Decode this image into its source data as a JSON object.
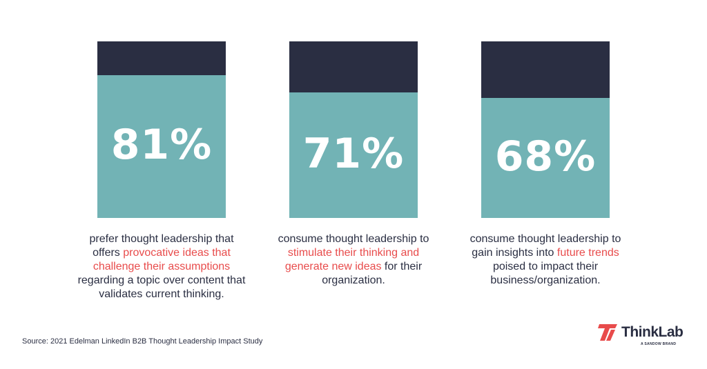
{
  "chart_data": {
    "type": "bar",
    "title": "",
    "categories": [
      "prefer provocative ideas",
      "stimulate thinking",
      "future trends"
    ],
    "values": [
      81,
      71,
      68
    ],
    "value_labels": [
      "81%",
      "71%",
      "68%"
    ],
    "ylim": [
      0,
      100
    ],
    "unit": "%"
  },
  "captions": [
    {
      "before": "prefer thought leadership that offers ",
      "highlight": "provocative ideas that challenge their assumptions",
      "after": " regarding a topic over content that validates current thinking."
    },
    {
      "before": "consume thought leadership to ",
      "highlight": "stimulate their thinking and generate new ideas",
      "after": " for their organization."
    },
    {
      "before": "consume thought leadership to gain insights into ",
      "highlight": "future trends",
      "after": " poised to impact their business/organization."
    }
  ],
  "source": "Source: 2021 Edelman LinkedIn B2B Thought Leadership Impact Study",
  "logo": {
    "name": "ThinkLab",
    "tagline": "A SANDOW BRAND"
  },
  "colors": {
    "dark": "#2a2e42",
    "teal": "#72b3b5",
    "accent": "#e84b4b"
  }
}
